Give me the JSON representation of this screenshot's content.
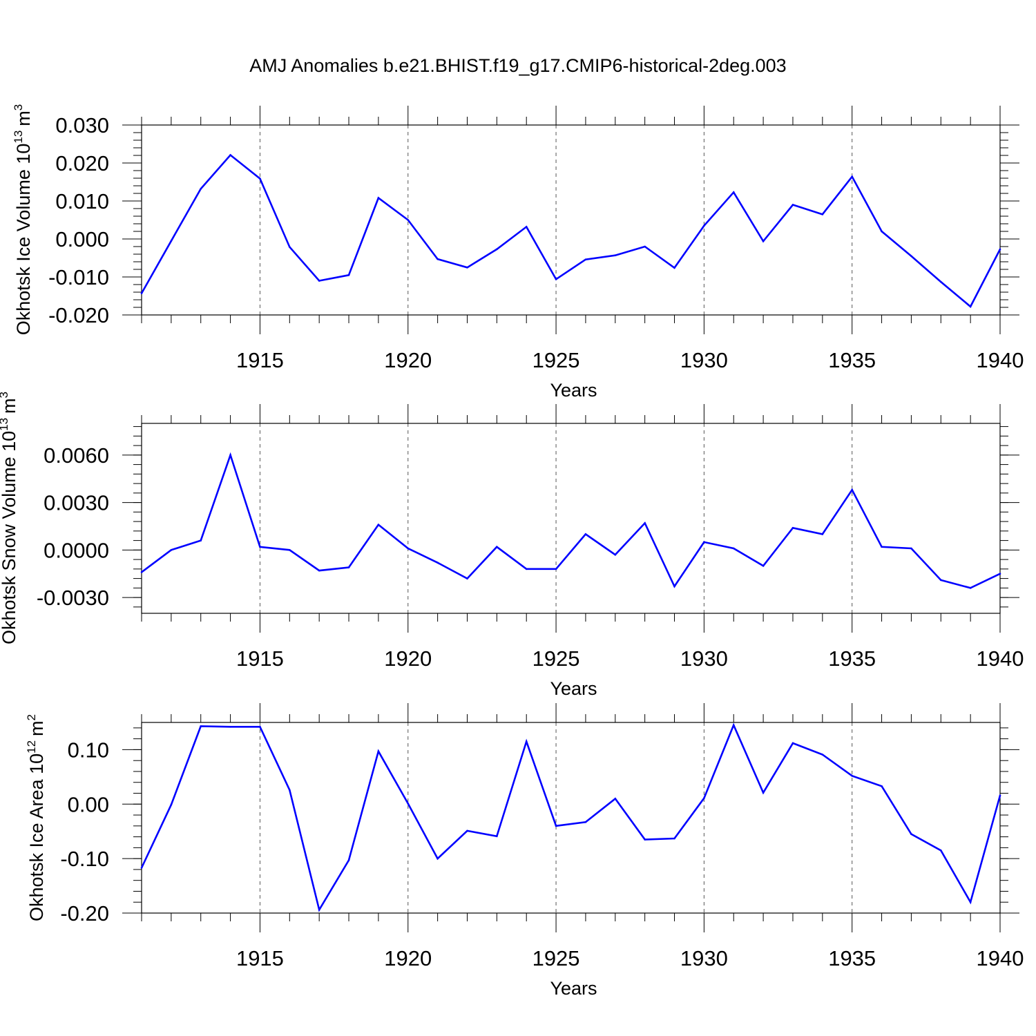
{
  "title": "AMJ Anomalies b.e21.BHIST.f19_g17.CMIP6-historical-2deg.003",
  "line_color": "#0000ff",
  "chart_data": [
    {
      "type": "line",
      "ylabel": "Okhotsk Ice Volume 10",
      "ylabel_sup": "13",
      "ylabel_unit": "m",
      "ylabel_unit_sup": "3",
      "xlabel": "Years",
      "xlim": [
        1911,
        1940
      ],
      "ylim": [
        -0.02,
        0.03
      ],
      "yticks": [
        "0.030",
        "0.020",
        "0.010",
        "0.000",
        "-0.010",
        "-0.020"
      ],
      "xticks": [
        "1915",
        "1920",
        "1925",
        "1930",
        "1935",
        "1940"
      ],
      "x": [
        1911,
        1912,
        1913,
        1914,
        1915,
        1916,
        1917,
        1918,
        1919,
        1920,
        1921,
        1922,
        1923,
        1924,
        1925,
        1926,
        1927,
        1928,
        1929,
        1930,
        1931,
        1932,
        1933,
        1934,
        1935,
        1936,
        1937,
        1938,
        1939,
        1940
      ],
      "series": [
        {
          "values": [
            -0.0143,
            -0.0005,
            0.0132,
            0.0221,
            0.0159,
            -0.0021,
            -0.011,
            -0.0095,
            0.0108,
            0.005,
            -0.0053,
            -0.0075,
            -0.0027,
            0.0032,
            -0.0106,
            -0.0054,
            -0.0043,
            -0.002,
            -0.0076,
            0.0035,
            0.0123,
            -0.0006,
            0.009,
            0.0065,
            0.0164,
            0.002,
            -0.0045,
            -0.0113,
            -0.0178,
            -0.0027
          ]
        }
      ]
    },
    {
      "type": "line",
      "ylabel": "Okhotsk Snow Volume 10",
      "ylabel_sup": "13",
      "ylabel_unit": "m",
      "ylabel_unit_sup": "3",
      "xlabel": "Years",
      "xlim": [
        1911,
        1940
      ],
      "ylim": [
        -0.004,
        0.008
      ],
      "yticks": [
        "0.0060",
        "0.0030",
        "0.0000",
        "-0.0030"
      ],
      "xticks": [
        "1915",
        "1920",
        "1925",
        "1930",
        "1935",
        "1940"
      ],
      "x": [
        1911,
        1912,
        1913,
        1914,
        1915,
        1916,
        1917,
        1918,
        1919,
        1920,
        1921,
        1922,
        1923,
        1924,
        1925,
        1926,
        1927,
        1928,
        1929,
        1930,
        1931,
        1932,
        1933,
        1934,
        1935,
        1936,
        1937,
        1938,
        1939,
        1940
      ],
      "series": [
        {
          "values": [
            -0.0014,
            0.0,
            0.0006,
            0.006,
            0.0002,
            -0.0,
            -0.0013,
            -0.0011,
            0.0016,
            0.0001,
            -0.0008,
            -0.0018,
            0.0002,
            -0.0012,
            -0.0012,
            0.001,
            -0.0003,
            0.0017,
            -0.0023,
            0.0005,
            0.0001,
            -0.001,
            0.0014,
            0.001,
            0.0038,
            0.0002,
            0.0001,
            -0.0019,
            -0.0024,
            -0.0015
          ]
        }
      ]
    },
    {
      "type": "line",
      "ylabel": "Okhotsk Ice Area 10",
      "ylabel_sup": "12",
      "ylabel_unit": "m",
      "ylabel_unit_sup": "2",
      "xlabel": "Years",
      "xlim": [
        1911,
        1940
      ],
      "ylim": [
        -0.2,
        0.15
      ],
      "yticks": [
        "0.10",
        "0.00",
        "-0.10",
        "-0.20"
      ],
      "xticks": [
        "1915",
        "1920",
        "1925",
        "1930",
        "1935",
        "1940"
      ],
      "x": [
        1911,
        1912,
        1913,
        1914,
        1915,
        1916,
        1917,
        1918,
        1919,
        1920,
        1921,
        1922,
        1923,
        1924,
        1925,
        1926,
        1927,
        1928,
        1929,
        1930,
        1931,
        1932,
        1933,
        1934,
        1935,
        1936,
        1937,
        1938,
        1939,
        1940
      ],
      "series": [
        {
          "values": [
            -0.117,
            -0.001,
            0.143,
            0.142,
            0.142,
            0.026,
            -0.194,
            -0.103,
            0.097,
            0.001,
            -0.1,
            -0.049,
            -0.059,
            0.115,
            -0.04,
            -0.033,
            0.01,
            -0.065,
            -0.063,
            0.011,
            0.145,
            0.021,
            0.112,
            0.091,
            0.052,
            0.033,
            -0.055,
            -0.085,
            -0.18,
            0.016
          ]
        }
      ]
    }
  ]
}
